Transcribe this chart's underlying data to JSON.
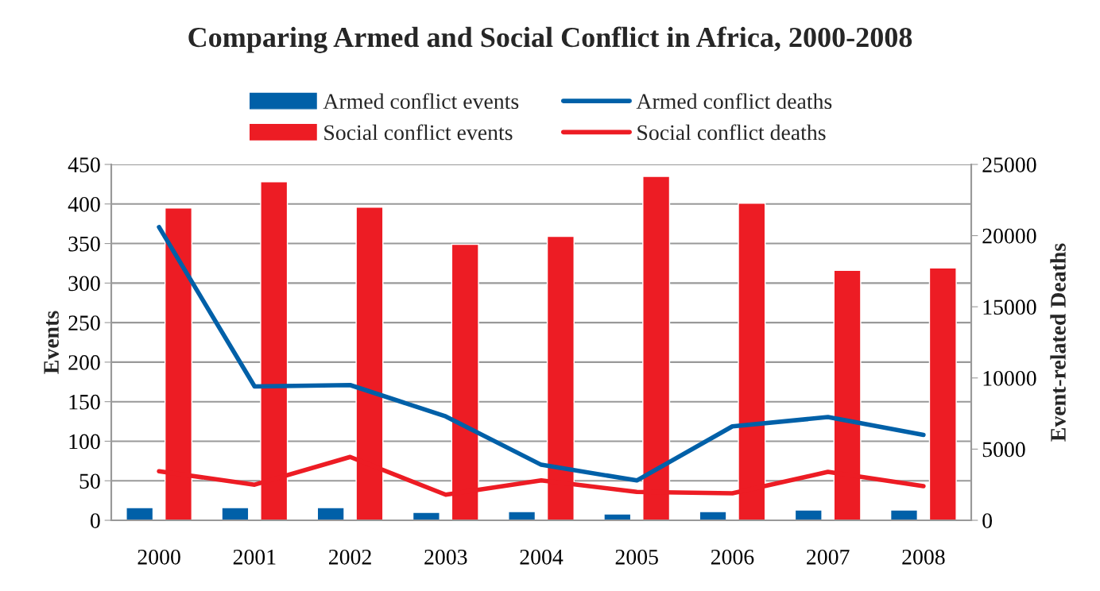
{
  "chart_data": {
    "type": "bar",
    "title": "Comparing Armed and Social Conflict in Africa, 2000-2008",
    "categories": [
      "2000",
      "2001",
      "2002",
      "2003",
      "2004",
      "2005",
      "2006",
      "2007",
      "2008"
    ],
    "series": [
      {
        "name": "Armed conflict events",
        "color": "#0060a8",
        "values": [
          16,
          16,
          16,
          10,
          11,
          8,
          11,
          13,
          13
        ]
      },
      {
        "name": "Social conflict events",
        "color": "#ed1c24",
        "values": [
          395,
          428,
          396,
          349,
          359,
          435,
          401,
          316,
          319
        ]
      },
      {
        "name": "Armed conflict deaths",
        "type": "line",
        "axis": "y2",
        "color": "#0060a8",
        "values": [
          20600,
          9400,
          9500,
          7300,
          3900,
          2800,
          6600,
          7250,
          6000
        ]
      },
      {
        "name": "Social conflict deaths",
        "type": "line",
        "axis": "y2",
        "color": "#ed1c24",
        "values": [
          3450,
          2500,
          4450,
          1800,
          2800,
          2000,
          1900,
          3400,
          2400
        ]
      }
    ],
    "ylabel": "Events",
    "y2label": "Event-related Deaths",
    "ylim": [
      0,
      450
    ],
    "yticks": [
      0,
      50,
      100,
      150,
      200,
      250,
      300,
      350,
      400,
      450
    ],
    "y2lim": [
      0,
      25000
    ],
    "y2ticks": [
      0,
      5000,
      10000,
      15000,
      20000,
      25000
    ],
    "grid": "y",
    "legend": "top"
  }
}
